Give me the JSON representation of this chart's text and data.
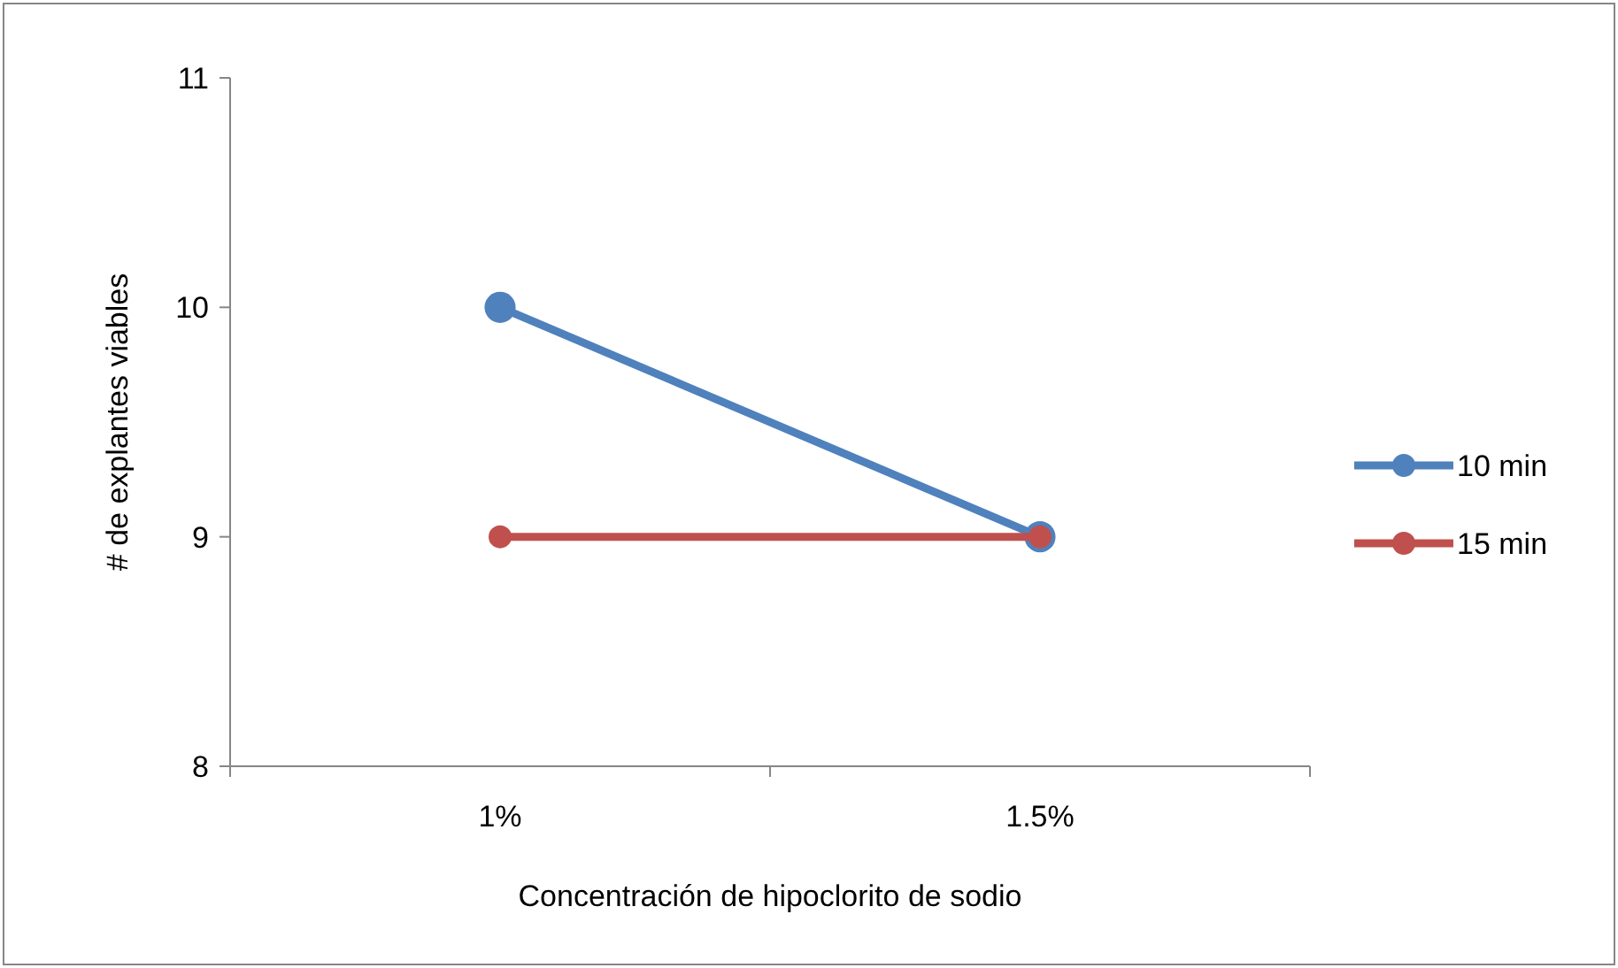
{
  "chart_data": {
    "type": "line",
    "xlabel": "Concentración de hipoclorito de sodio",
    "ylabel": "# de explantes viables",
    "categories": [
      "1%",
      "1.5%"
    ],
    "series": [
      {
        "name": "10 min",
        "color": "#4f81bd",
        "values": [
          10,
          9
        ]
      },
      {
        "name": "15 min",
        "color": "#c0504d",
        "values": [
          9,
          9
        ]
      }
    ],
    "ylim": [
      8,
      11
    ],
    "yticks": [
      8,
      9,
      10,
      11
    ],
    "grid": false,
    "legend": "right",
    "marker": "circle",
    "line_style": "solid"
  }
}
